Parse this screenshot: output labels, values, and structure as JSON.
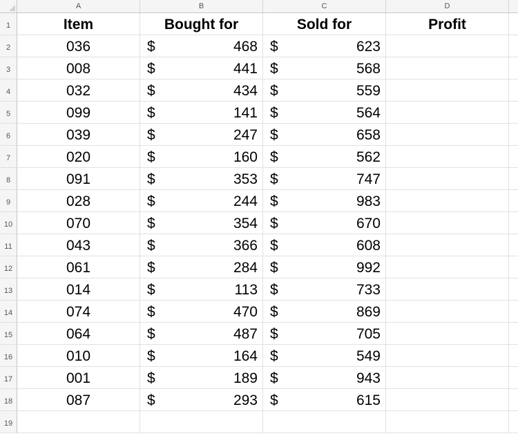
{
  "columns": [
    "A",
    "B",
    "C",
    "D"
  ],
  "headers": {
    "item": "Item",
    "bought": "Bought for",
    "sold": "Sold for",
    "profit": "Profit"
  },
  "currency_symbol": "$",
  "rows": [
    {
      "item": "036",
      "bought": "468",
      "sold": "623"
    },
    {
      "item": "008",
      "bought": "441",
      "sold": "568"
    },
    {
      "item": "032",
      "bought": "434",
      "sold": "559"
    },
    {
      "item": "099",
      "bought": "141",
      "sold": "564"
    },
    {
      "item": "039",
      "bought": "247",
      "sold": "658"
    },
    {
      "item": "020",
      "bought": "160",
      "sold": "562"
    },
    {
      "item": "091",
      "bought": "353",
      "sold": "747"
    },
    {
      "item": "028",
      "bought": "244",
      "sold": "983"
    },
    {
      "item": "070",
      "bought": "354",
      "sold": "670"
    },
    {
      "item": "043",
      "bought": "366",
      "sold": "608"
    },
    {
      "item": "061",
      "bought": "284",
      "sold": "992"
    },
    {
      "item": "014",
      "bought": "113",
      "sold": "733"
    },
    {
      "item": "074",
      "bought": "470",
      "sold": "869"
    },
    {
      "item": "064",
      "bought": "487",
      "sold": "705"
    },
    {
      "item": "010",
      "bought": "164",
      "sold": "549"
    },
    {
      "item": "001",
      "bought": "189",
      "sold": "943"
    },
    {
      "item": "087",
      "bought": "293",
      "sold": "615"
    }
  ],
  "row_numbers": [
    "1",
    "2",
    "3",
    "4",
    "5",
    "6",
    "7",
    "8",
    "9",
    "10",
    "11",
    "12",
    "13",
    "14",
    "15",
    "16",
    "17",
    "18",
    "19"
  ]
}
